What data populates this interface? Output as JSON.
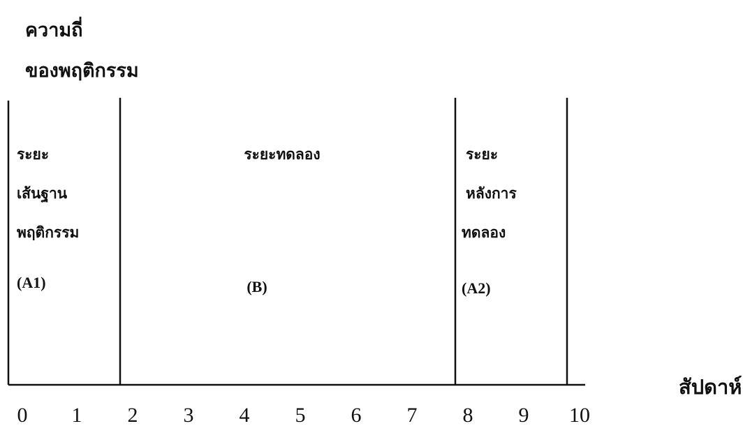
{
  "chart_data": {
    "type": "phase-design",
    "ylabel_lines": [
      "ความถี่",
      "ของพฤติกรรม"
    ],
    "xlabel": "สัปดาห์",
    "xlim": [
      0,
      10
    ],
    "x_ticks": [
      0,
      1,
      2,
      3,
      4,
      5,
      6,
      7,
      8,
      9,
      10
    ],
    "phase_boundaries": [
      2,
      8
    ],
    "phases": [
      {
        "start": 0,
        "end": 2,
        "label_lines": [
          "ระยะ",
          "เส้นฐาน",
          "พฤติกรรม"
        ],
        "code": "(A1)"
      },
      {
        "start": 2,
        "end": 8,
        "label_lines": [
          "ระยะทดลอง"
        ],
        "code": "(B)"
      },
      {
        "start": 8,
        "end": 10,
        "label_lines": [
          "ระยะ",
          "หลังการ",
          "ทดลอง"
        ],
        "code": "(A2)"
      }
    ]
  }
}
